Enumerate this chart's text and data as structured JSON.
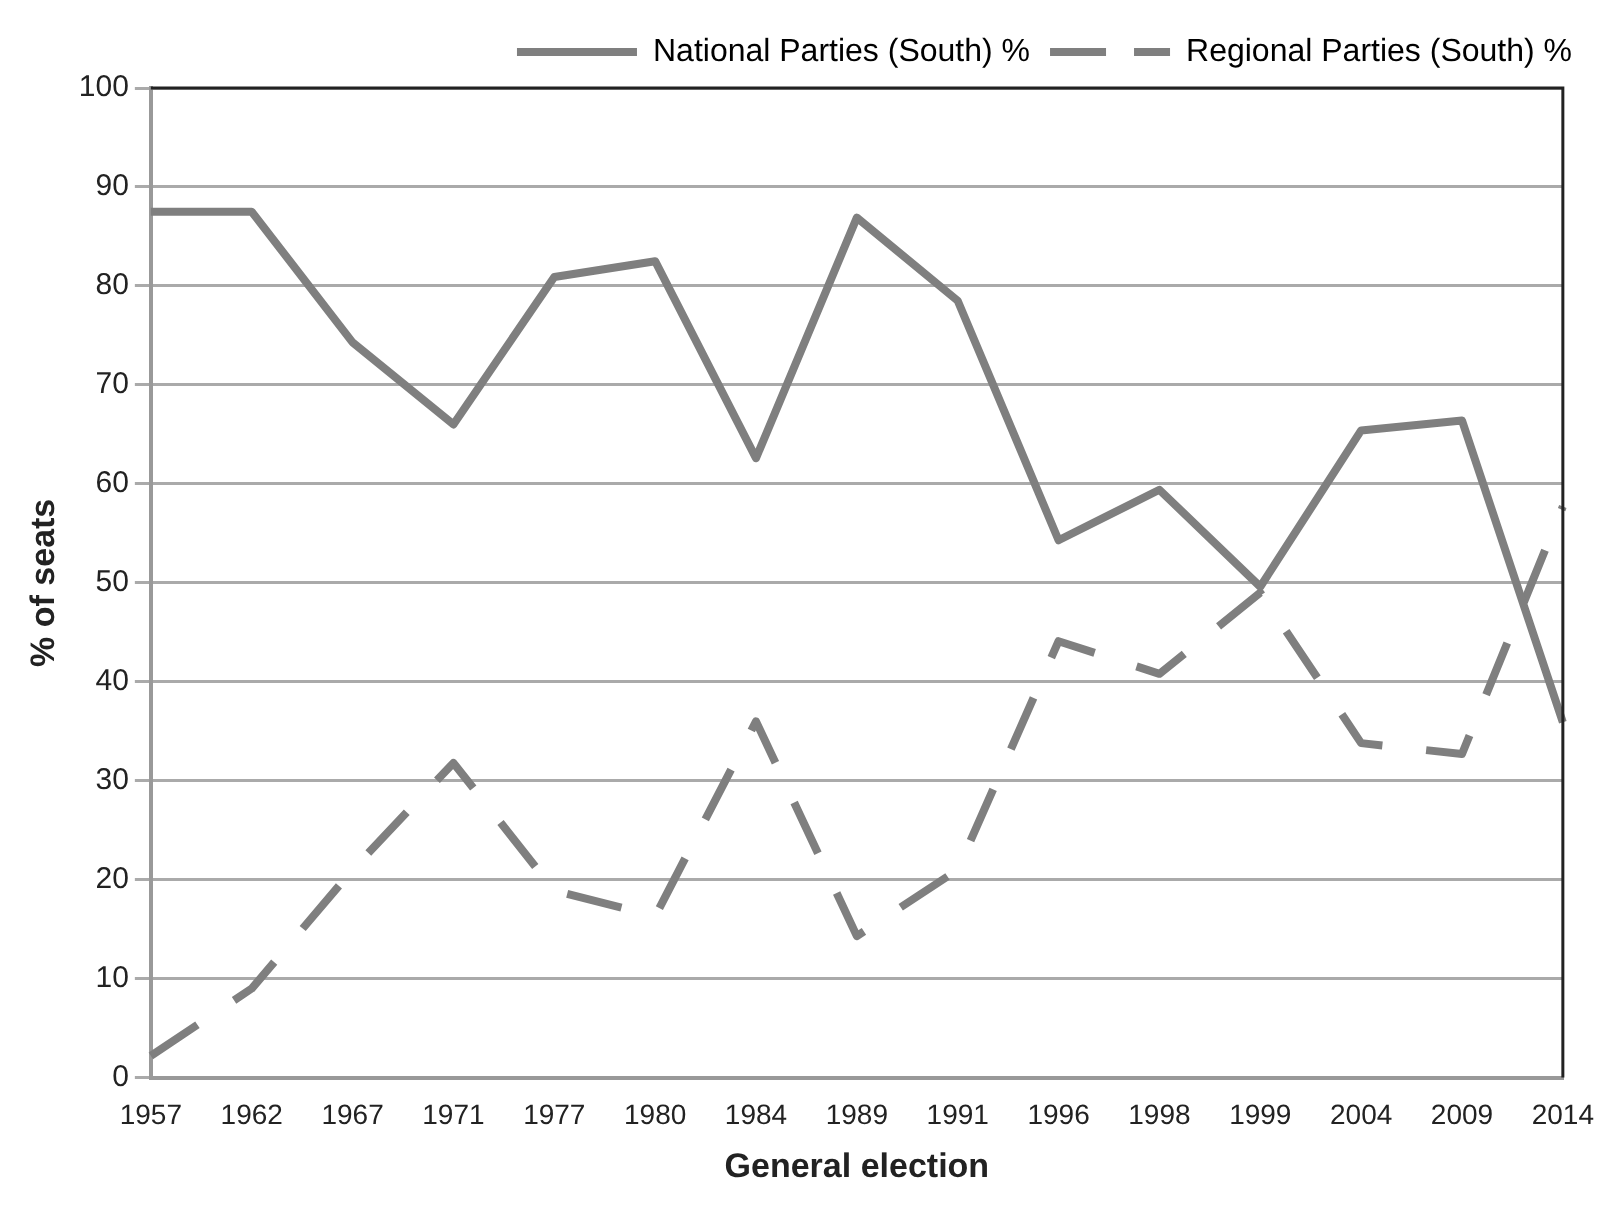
{
  "chart_data": {
    "type": "line",
    "xlabel": "General election",
    "ylabel": "% of seats",
    "categories": [
      "1957",
      "1962",
      "1967",
      "1971",
      "1977",
      "1980",
      "1984",
      "1989",
      "1991",
      "1996",
      "1998",
      "1999",
      "2004",
      "2009",
      "2014"
    ],
    "series": [
      {
        "name": "National Parties (South) %",
        "color": "#7f7f7f",
        "line_style": "solid",
        "values": [
          87.5,
          87.5,
          74.3,
          66,
          80.9,
          82.5,
          62.6,
          86.9,
          78.5,
          54.3,
          59.4,
          49.6,
          65.4,
          66.4,
          35.9
        ]
      },
      {
        "name": "Regional Parties (South) %",
        "color": "#7f7f7f",
        "line_style": "dashed",
        "values": [
          2.2,
          9,
          21,
          31.8,
          18.9,
          16.3,
          36,
          14.3,
          21,
          44.1,
          40.8,
          49,
          33.8,
          32.7,
          57.7
        ]
      }
    ],
    "ylim": [
      0,
      100
    ],
    "yticks": [
      0,
      10,
      20,
      30,
      40,
      50,
      60,
      70,
      80,
      90,
      100
    ],
    "grid": "y",
    "legend": "top right",
    "marker": "none"
  }
}
